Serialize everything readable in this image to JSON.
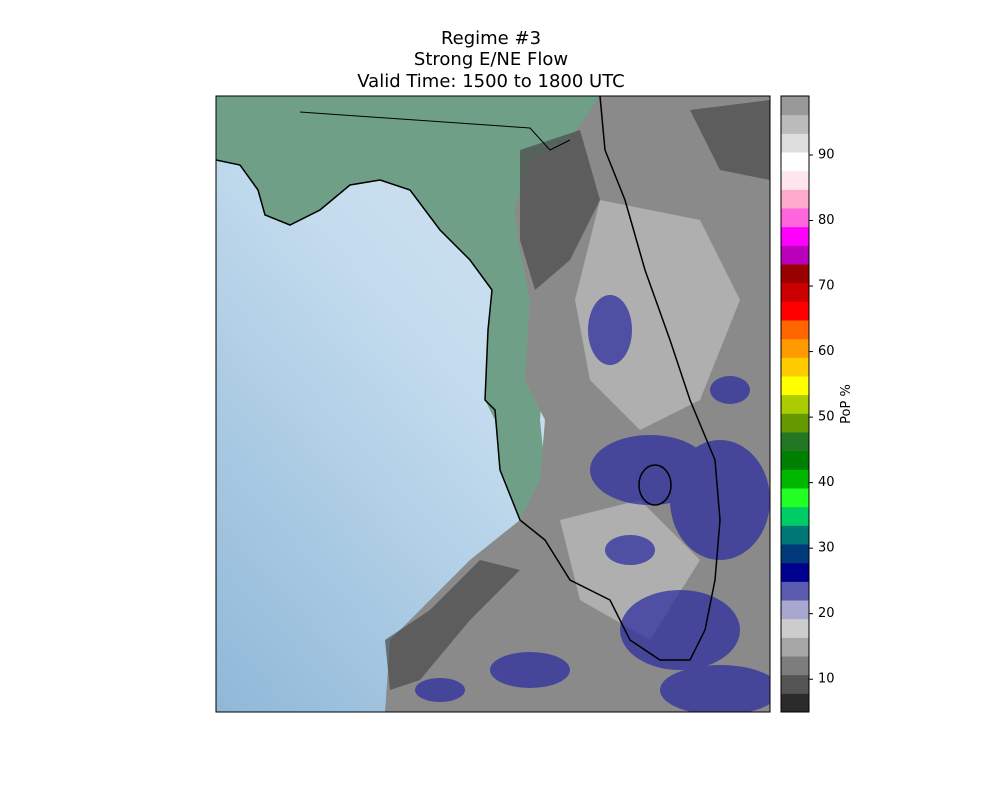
{
  "title": [
    "Regime #3",
    "Strong E/NE Flow",
    "Valid Time: 1500 to 1800 UTC"
  ],
  "colorbar": {
    "label": "PoP %",
    "lim": [
      5,
      99
    ],
    "ticks": [
      10,
      20,
      30,
      40,
      50,
      60,
      70,
      80,
      90
    ],
    "colors": [
      "#2b2b2b",
      "#555555",
      "#7d7d7d",
      "#a6a6a6",
      "#cccccc",
      "#a7a7d0",
      "#5a5ab0",
      "#00008f",
      "#003a7a",
      "#007777",
      "#00cc66",
      "#22ff22",
      "#00b800",
      "#008000",
      "#227722",
      "#669900",
      "#aacc00",
      "#ffff00",
      "#ffcc00",
      "#ff9900",
      "#ff6600",
      "#ff0000",
      "#cc0000",
      "#990000",
      "#bb00bb",
      "#ff00ff",
      "#ff66dd",
      "#ffaacc",
      "#ffe6ee",
      "#ffffff",
      "#dddddd",
      "#bbbbbb",
      "#999999"
    ]
  }
}
